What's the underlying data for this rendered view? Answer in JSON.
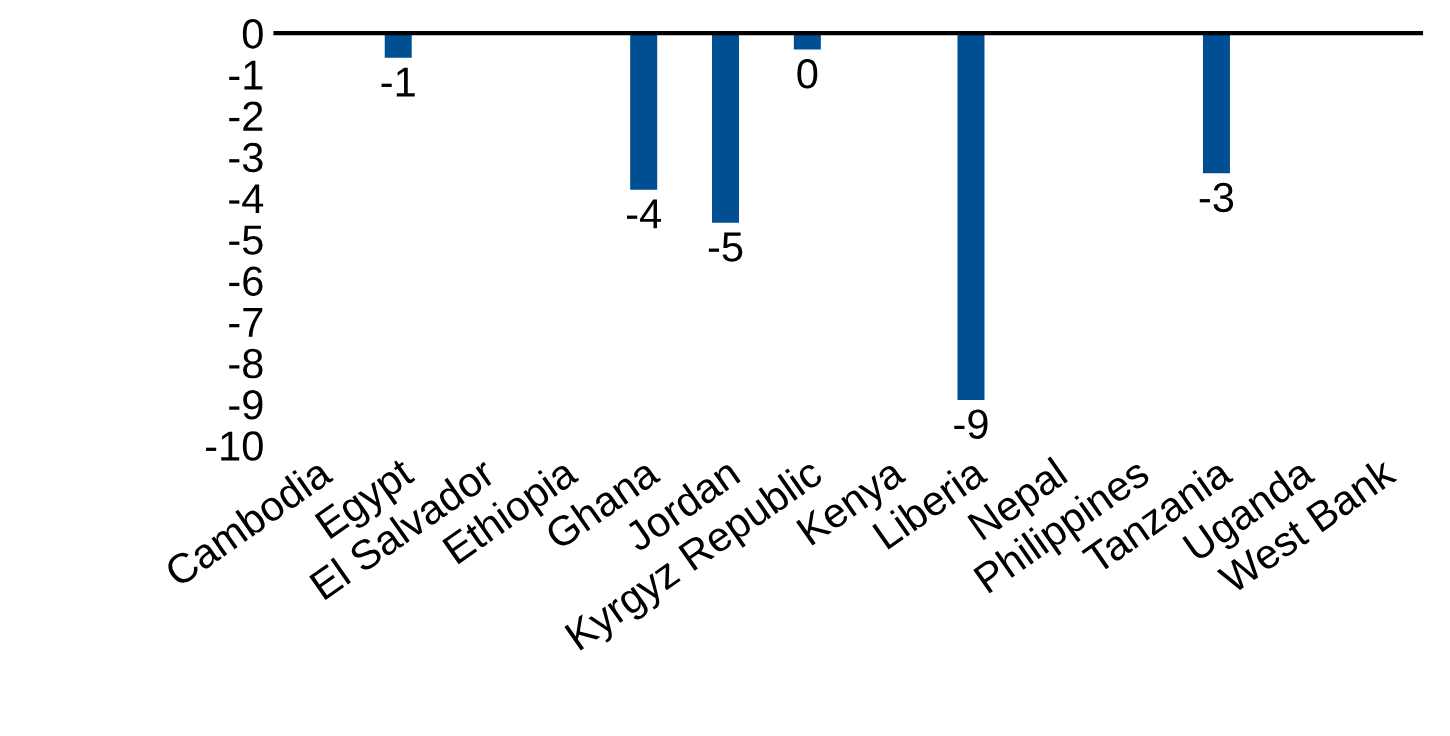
{
  "chart_data": {
    "type": "bar",
    "categories": [
      "Cambodia",
      "Egypt",
      "El Salvador",
      "Ethiopia",
      "Ghana",
      "Jordan",
      "Kyrgyz Republic",
      "Kenya",
      "Liberia",
      "Nepal",
      "Philippines",
      "Tanzania",
      "Uganda",
      "West Bank"
    ],
    "values": [
      null,
      -0.6,
      null,
      null,
      -3.8,
      -4.6,
      -0.4,
      null,
      -8.9,
      null,
      null,
      -3.4,
      null,
      null
    ],
    "value_labels": [
      null,
      "-1",
      null,
      null,
      "-4",
      "-5",
      "0",
      null,
      "-9",
      null,
      null,
      "-3",
      null,
      null
    ],
    "color": "#004f93",
    "ylim": [
      -10,
      0
    ],
    "yticks": [
      0,
      -1,
      -2,
      -3,
      -4,
      -5,
      -6,
      -7,
      -8,
      -9,
      -10
    ],
    "grid": false,
    "legend": false
  }
}
